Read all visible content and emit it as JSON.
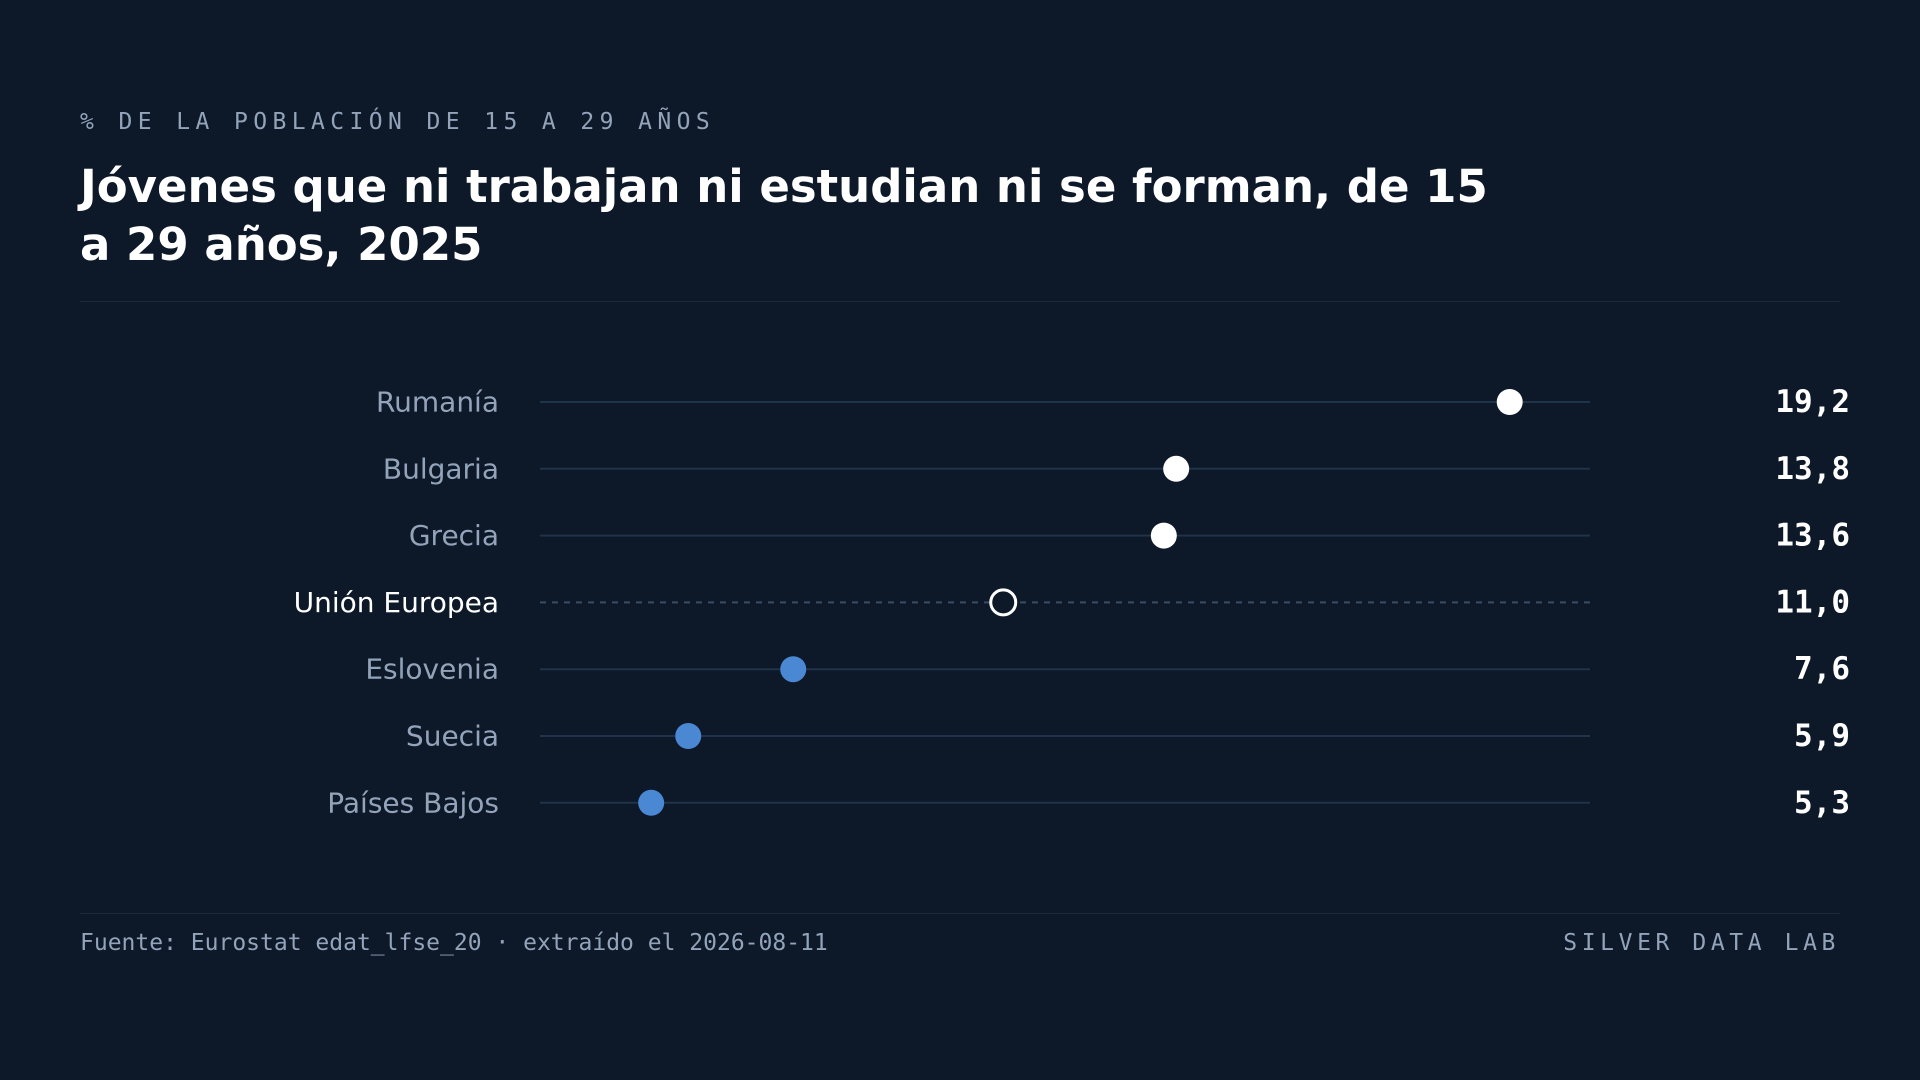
{
  "header": {
    "eyebrow": "% DE LA POBLACIÓN DE 15 A 29 AÑOS",
    "title": "Jóvenes que ni trabajan ni estudian ni se forman, de 15 a 29 años, 2025"
  },
  "footer": {
    "source": "Fuente: Eurostat edat_lfse_20 · extraído el 2026-08-11",
    "brand": "SILVER DATA LAB"
  },
  "colors": {
    "background": "#0d1929",
    "highlight_high": "#ffffff",
    "highlight_low": "#4a88d4",
    "reference": "#ffffff",
    "track": "#1f3349",
    "label": "#93a3ba",
    "reference_label": "#ffffff",
    "value": "#ffffff"
  },
  "chart_data": {
    "type": "scatter",
    "subtype": "dot-plot",
    "orientation": "horizontal",
    "title": "Jóvenes que ni trabajan ni estudian ni se forman, de 15 a 29 años, 2025",
    "unit": "% de la población de 15 a 29 años",
    "xlim": [
      3.5,
      20.5
    ],
    "grid": false,
    "legend": "none",
    "categories": [
      "Rumanía",
      "Bulgaria",
      "Grecia",
      "Unión Europea",
      "Eslovenia",
      "Suecia",
      "Países Bajos"
    ],
    "values": [
      19.2,
      13.8,
      13.6,
      11.0,
      7.6,
      5.9,
      5.3
    ],
    "value_labels": [
      "19,2",
      "13,8",
      "13,6",
      "11,0",
      "7,6",
      "5,9",
      "5,3"
    ],
    "groups": [
      "high",
      "high",
      "high",
      "reference",
      "low",
      "low",
      "low"
    ]
  }
}
